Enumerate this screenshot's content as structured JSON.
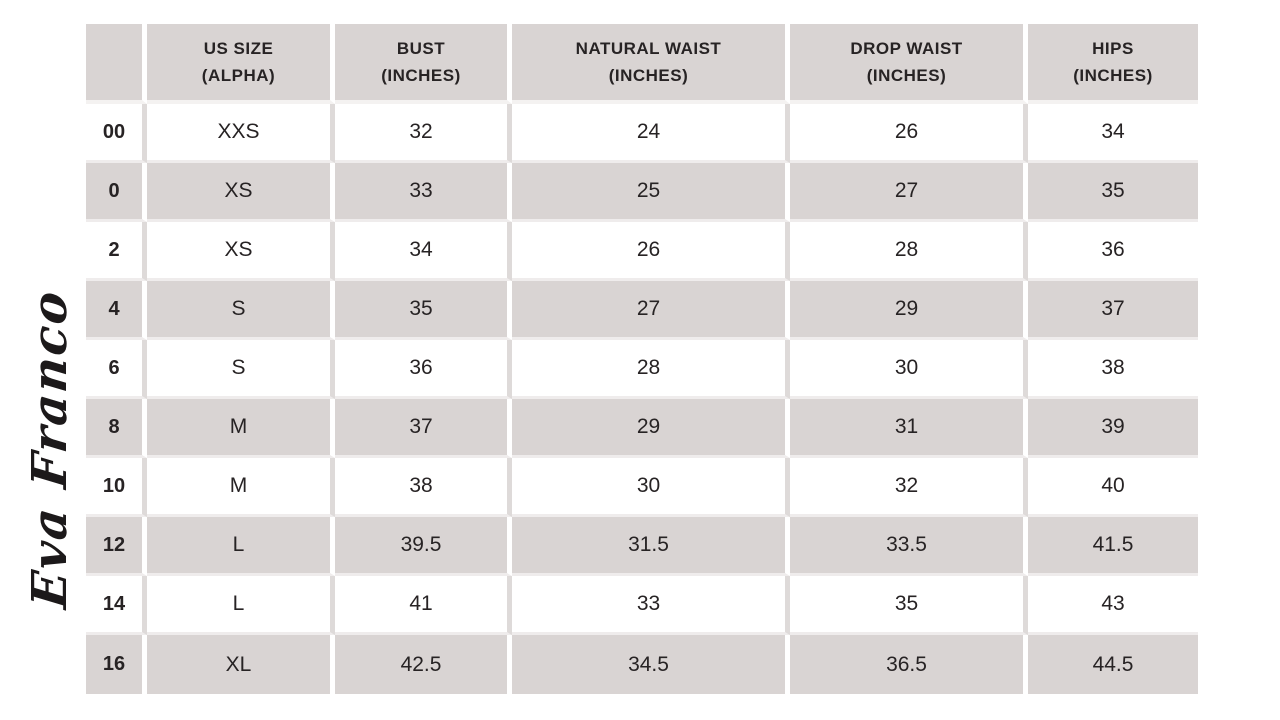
{
  "brand": {
    "logo_text": "Eva Franco",
    "logo_color": "#1c191a"
  },
  "colors": {
    "header_bg": "#d9d4d3",
    "stripe_bg": "#d9d4d3",
    "row_divider": "#efecec",
    "white_row_column_divider": "#dedad9",
    "gray_row_column_divider": "#ffffff",
    "text": "#272324",
    "page_bg": "#ffffff"
  },
  "chart_data": {
    "type": "table",
    "title": "Eva Franco women's size chart",
    "columns": [
      {
        "line1": "",
        "line2": ""
      },
      {
        "line1": "US SIZE",
        "line2": "(ALPHA)"
      },
      {
        "line1": "BUST",
        "line2": "(INCHES)"
      },
      {
        "line1": "NATURAL WAIST",
        "line2": "(INCHES)"
      },
      {
        "line1": "DROP WAIST",
        "line2": "(INCHES)"
      },
      {
        "line1": "HIPS",
        "line2": "(INCHES)"
      }
    ],
    "column_keys": [
      "us_numeric_size",
      "alpha_size",
      "bust_in",
      "natural_waist_in",
      "drop_waist_in",
      "hips_in"
    ],
    "rows": [
      [
        "00",
        "XXS",
        "32",
        "24",
        "26",
        "34"
      ],
      [
        "0",
        "XS",
        "33",
        "25",
        "27",
        "35"
      ],
      [
        "2",
        "XS",
        "34",
        "26",
        "28",
        "36"
      ],
      [
        "4",
        "S",
        "35",
        "27",
        "29",
        "37"
      ],
      [
        "6",
        "S",
        "36",
        "28",
        "30",
        "38"
      ],
      [
        "8",
        "M",
        "37",
        "29",
        "31",
        "39"
      ],
      [
        "10",
        "M",
        "38",
        "30",
        "32",
        "40"
      ],
      [
        "12",
        "L",
        "39.5",
        "31.5",
        "33.5",
        "41.5"
      ],
      [
        "14",
        "L",
        "41",
        "33",
        "35",
        "43"
      ],
      [
        "16",
        "XL",
        "42.5",
        "34.5",
        "36.5",
        "44.5"
      ]
    ],
    "layout": {
      "stripe_pattern": "alternating white/gray starting white",
      "header": "gray"
    }
  }
}
